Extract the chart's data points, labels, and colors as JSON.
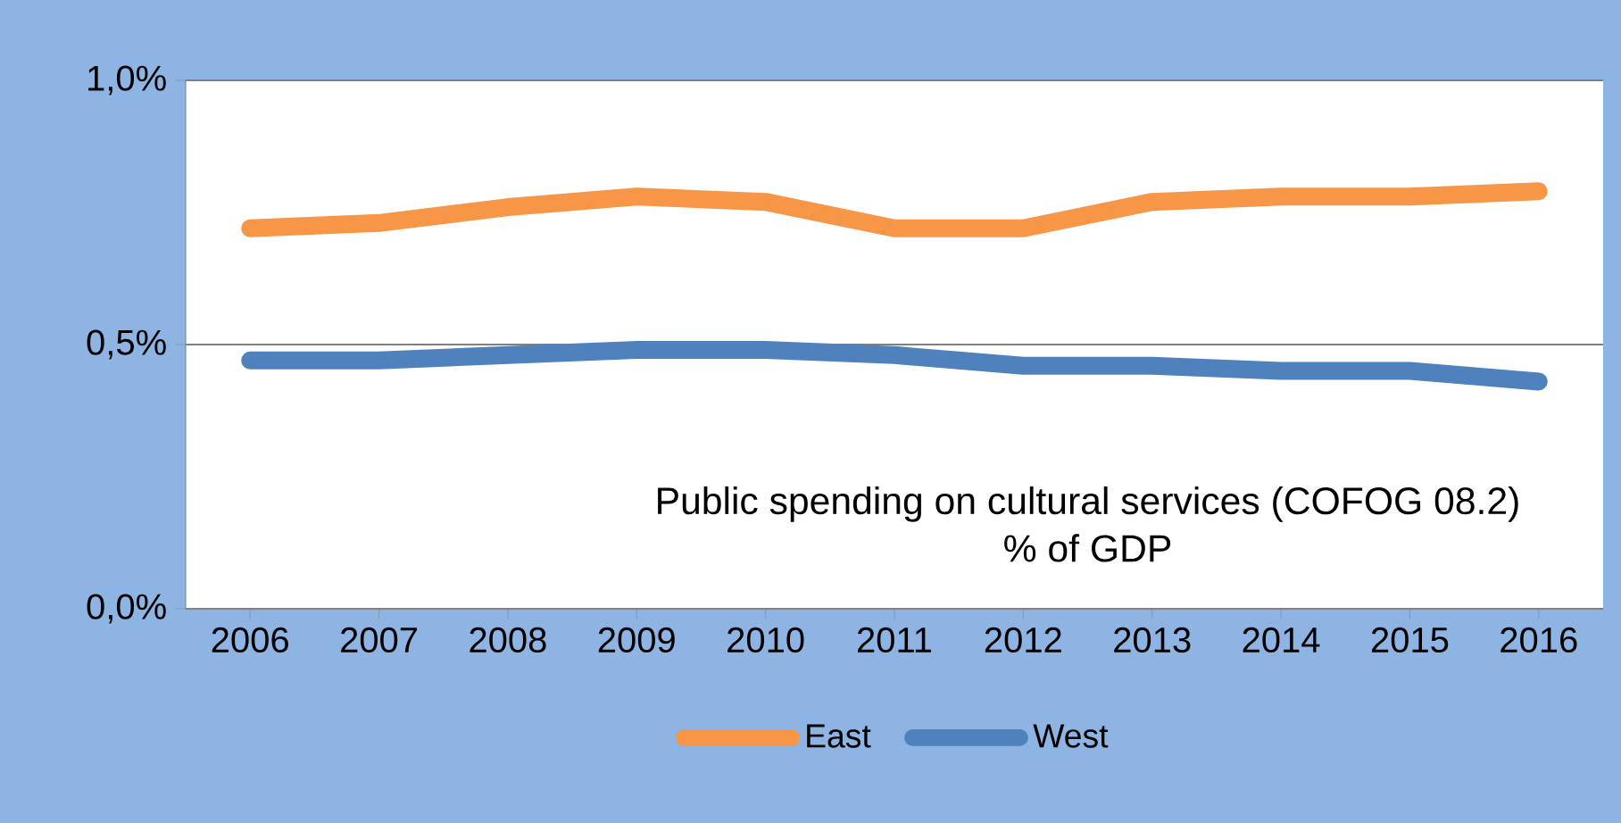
{
  "chart_data": {
    "type": "line",
    "title": "Public spending on cultural services (COFOG 08.2)",
    "subtitle": "% of GDP",
    "categories": [
      "2006",
      "2007",
      "2008",
      "2009",
      "2010",
      "2011",
      "2012",
      "2013",
      "2014",
      "2015",
      "2016"
    ],
    "series": [
      {
        "name": "East",
        "color": "#f79646",
        "values": [
          0.72,
          0.73,
          0.76,
          0.78,
          0.77,
          0.72,
          0.72,
          0.77,
          0.78,
          0.78,
          0.79
        ]
      },
      {
        "name": "West",
        "color": "#4f81bd",
        "values": [
          0.47,
          0.47,
          0.48,
          0.49,
          0.49,
          0.48,
          0.46,
          0.46,
          0.45,
          0.45,
          0.43
        ]
      }
    ],
    "ylim": [
      0,
      1
    ],
    "yticks": [
      {
        "value": 0,
        "label": "0,0%"
      },
      {
        "value": 0.5,
        "label": "0,5%"
      },
      {
        "value": 1,
        "label": "1,0%"
      }
    ],
    "grid": "y",
    "legend": "bottom",
    "marker": "none",
    "line_style": "solid"
  }
}
